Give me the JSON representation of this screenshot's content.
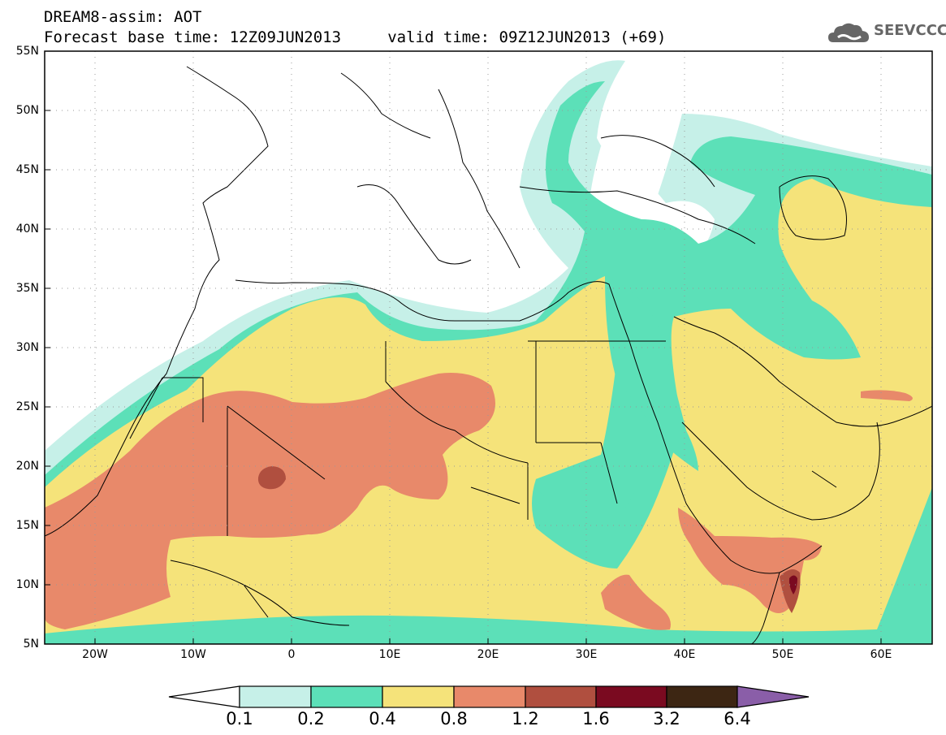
{
  "header": {
    "title_line1": "DREAM8-assim: AOT",
    "title_line2": "Forecast base time: 12Z09JUN2013     valid time: 09Z12JUN2013 (+69)",
    "logo_text": "SEEVCCC"
  },
  "map": {
    "lat_labels": [
      "55N",
      "50N",
      "45N",
      "40N",
      "35N",
      "30N",
      "25N",
      "20N",
      "15N",
      "10N",
      "5N"
    ],
    "lon_labels": [
      "20W",
      "10W",
      "0",
      "10E",
      "20E",
      "30E",
      "40E",
      "50E",
      "60E"
    ],
    "lat_range": [
      5,
      55
    ],
    "lon_range": [
      -25,
      65
    ],
    "grid": "dotted",
    "land_color": "#ffffff",
    "border_color": "#000000"
  },
  "colorbar": {
    "labels": [
      "0.1",
      "0.2",
      "0.4",
      "0.8",
      "1.2",
      "1.6",
      "3.2",
      "6.4"
    ],
    "colors": [
      "#ffffff",
      "#c6f0e8",
      "#5ce0b8",
      "#f5e37a",
      "#e8896a",
      "#b04f3f",
      "#7a0a20",
      "#3d2613",
      "#8a5ea8"
    ],
    "placement": "bottom"
  },
  "fields": {
    "aot_0_1": "#c6f0e8",
    "aot_0_2": "#5ce0b8",
    "aot_0_4": "#f5e37a",
    "aot_0_8": "#e8896a",
    "aot_1_2": "#b04f3f",
    "aot_1_6": "#7a0a20"
  }
}
